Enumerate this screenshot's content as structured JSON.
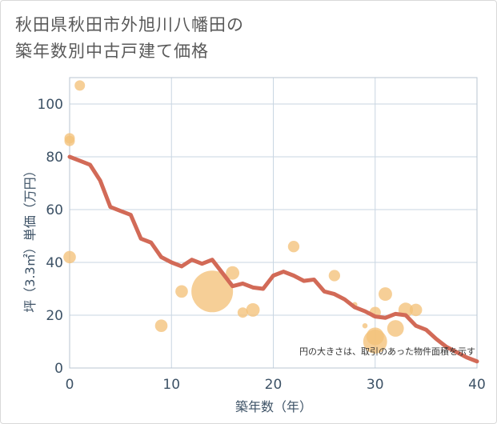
{
  "title_lines": [
    "秋田県秋田市外旭川八幡田の",
    "築年数別中古戸建て価格"
  ],
  "chart_data": {
    "type": "scatter",
    "title": "秋田県秋田市外旭川八幡田の築年数別中古戸建て価格",
    "xlabel": "築年数（年）",
    "ylabel": "坪（3.3㎡）単価（万円）",
    "xlim": [
      0,
      40
    ],
    "ylim": [
      0,
      110
    ],
    "xticks": [
      0,
      10,
      20,
      30,
      40
    ],
    "yticks": [
      0,
      20,
      40,
      60,
      80,
      100
    ],
    "grid": true,
    "note": "円の大きさは、取引のあった物件面積を示す",
    "colors": {
      "bubble": "#f4c27a",
      "trend": "#d26a57",
      "grid": "#c9d6e2",
      "text": "#3d5266"
    },
    "bubbles": [
      {
        "x": 0,
        "y": 87,
        "size": 1.0
      },
      {
        "x": 0,
        "y": 86,
        "size": 1.0
      },
      {
        "x": 0,
        "y": 42,
        "size": 1.2
      },
      {
        "x": 1,
        "y": 107,
        "size": 1.0
      },
      {
        "x": 9,
        "y": 16,
        "size": 1.2
      },
      {
        "x": 11,
        "y": 29,
        "size": 1.2
      },
      {
        "x": 14,
        "y": 29,
        "size": 4.0
      },
      {
        "x": 16,
        "y": 36,
        "size": 1.3
      },
      {
        "x": 17,
        "y": 21,
        "size": 1.0
      },
      {
        "x": 18,
        "y": 22,
        "size": 1.3
      },
      {
        "x": 22,
        "y": 46,
        "size": 1.1
      },
      {
        "x": 26,
        "y": 35,
        "size": 1.1
      },
      {
        "x": 28,
        "y": 24,
        "size": 0.5
      },
      {
        "x": 29,
        "y": 16,
        "size": 0.5
      },
      {
        "x": 30,
        "y": 21,
        "size": 1.1
      },
      {
        "x": 30,
        "y": 10,
        "size": 2.3
      },
      {
        "x": 30,
        "y": 12,
        "size": 1.7
      },
      {
        "x": 31,
        "y": 28,
        "size": 1.3
      },
      {
        "x": 32,
        "y": 15,
        "size": 1.6
      },
      {
        "x": 33,
        "y": 22,
        "size": 1.4
      },
      {
        "x": 34,
        "y": 22,
        "size": 1.2
      }
    ],
    "trend": {
      "x": [
        0,
        1,
        2,
        3,
        4,
        5,
        6,
        7,
        8,
        9,
        10,
        11,
        12,
        13,
        14,
        15,
        16,
        17,
        18,
        19,
        20,
        21,
        22,
        23,
        24,
        25,
        26,
        27,
        28,
        29,
        30,
        31,
        32,
        33,
        34,
        35,
        36,
        37,
        38,
        39,
        40
      ],
      "y": [
        80,
        78.5,
        77,
        71,
        61,
        59.5,
        58,
        49,
        47.5,
        42,
        40,
        38.5,
        41,
        39.5,
        41,
        36,
        31,
        32,
        30.5,
        30,
        35,
        36.5,
        35,
        33,
        33.5,
        29,
        28,
        26,
        23,
        21.5,
        19.5,
        19,
        20.5,
        20,
        16,
        14.5,
        11,
        8,
        6,
        4,
        2.5
      ]
    }
  }
}
